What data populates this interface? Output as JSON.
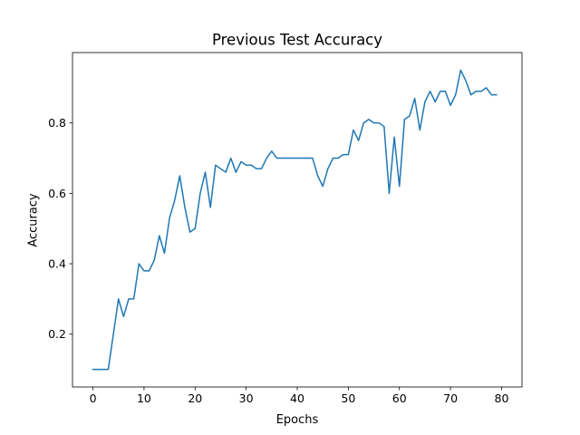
{
  "chart_data": {
    "type": "line",
    "title": "Previous Test Accuracy",
    "xlabel": "Epochs",
    "ylabel": "Accuracy",
    "xlim": [
      -4,
      84
    ],
    "ylim": [
      0.05,
      1.0
    ],
    "xticks": [
      0,
      10,
      20,
      30,
      40,
      50,
      60,
      70,
      80
    ],
    "yticks": [
      0.2,
      0.4,
      0.6,
      0.8
    ],
    "xtick_labels": [
      "0",
      "10",
      "20",
      "30",
      "40",
      "50",
      "60",
      "70",
      "80"
    ],
    "ytick_labels": [
      "0.2",
      "0.4",
      "0.6",
      "0.8"
    ],
    "grid": false,
    "line_color": "#1f77b4",
    "series": [
      {
        "x": [
          0,
          1,
          2,
          3,
          4,
          5,
          6,
          7,
          8,
          9,
          10,
          11,
          12,
          13,
          14,
          15,
          16,
          17,
          18,
          19,
          20,
          21,
          22,
          23,
          24,
          25,
          26,
          27,
          28,
          29,
          30,
          31,
          32,
          33,
          34,
          35,
          36,
          37,
          38,
          39,
          40,
          41,
          42,
          43,
          44,
          45,
          46,
          47,
          48,
          49,
          50,
          51,
          52,
          53,
          54,
          55,
          56,
          57,
          58,
          59,
          60,
          61,
          62,
          63,
          64,
          65,
          66,
          67,
          68,
          69,
          70,
          71,
          72,
          73,
          74,
          75,
          76,
          77,
          78,
          79
        ],
        "values": [
          0.1,
          0.1,
          0.1,
          0.1,
          0.2,
          0.3,
          0.25,
          0.3,
          0.3,
          0.4,
          0.38,
          0.38,
          0.41,
          0.48,
          0.43,
          0.53,
          0.58,
          0.65,
          0.56,
          0.49,
          0.5,
          0.6,
          0.66,
          0.56,
          0.68,
          0.67,
          0.66,
          0.7,
          0.66,
          0.69,
          0.68,
          0.68,
          0.67,
          0.67,
          0.7,
          0.72,
          0.7,
          0.7,
          0.7,
          0.7,
          0.7,
          0.7,
          0.7,
          0.7,
          0.65,
          0.62,
          0.67,
          0.7,
          0.7,
          0.71,
          0.71,
          0.78,
          0.75,
          0.8,
          0.81,
          0.8,
          0.8,
          0.79,
          0.6,
          0.76,
          0.62,
          0.81,
          0.82,
          0.87,
          0.78,
          0.86,
          0.89,
          0.86,
          0.89,
          0.89,
          0.85,
          0.88,
          0.95,
          0.92,
          0.88,
          0.89,
          0.89,
          0.9,
          0.88,
          0.88
        ]
      }
    ]
  }
}
